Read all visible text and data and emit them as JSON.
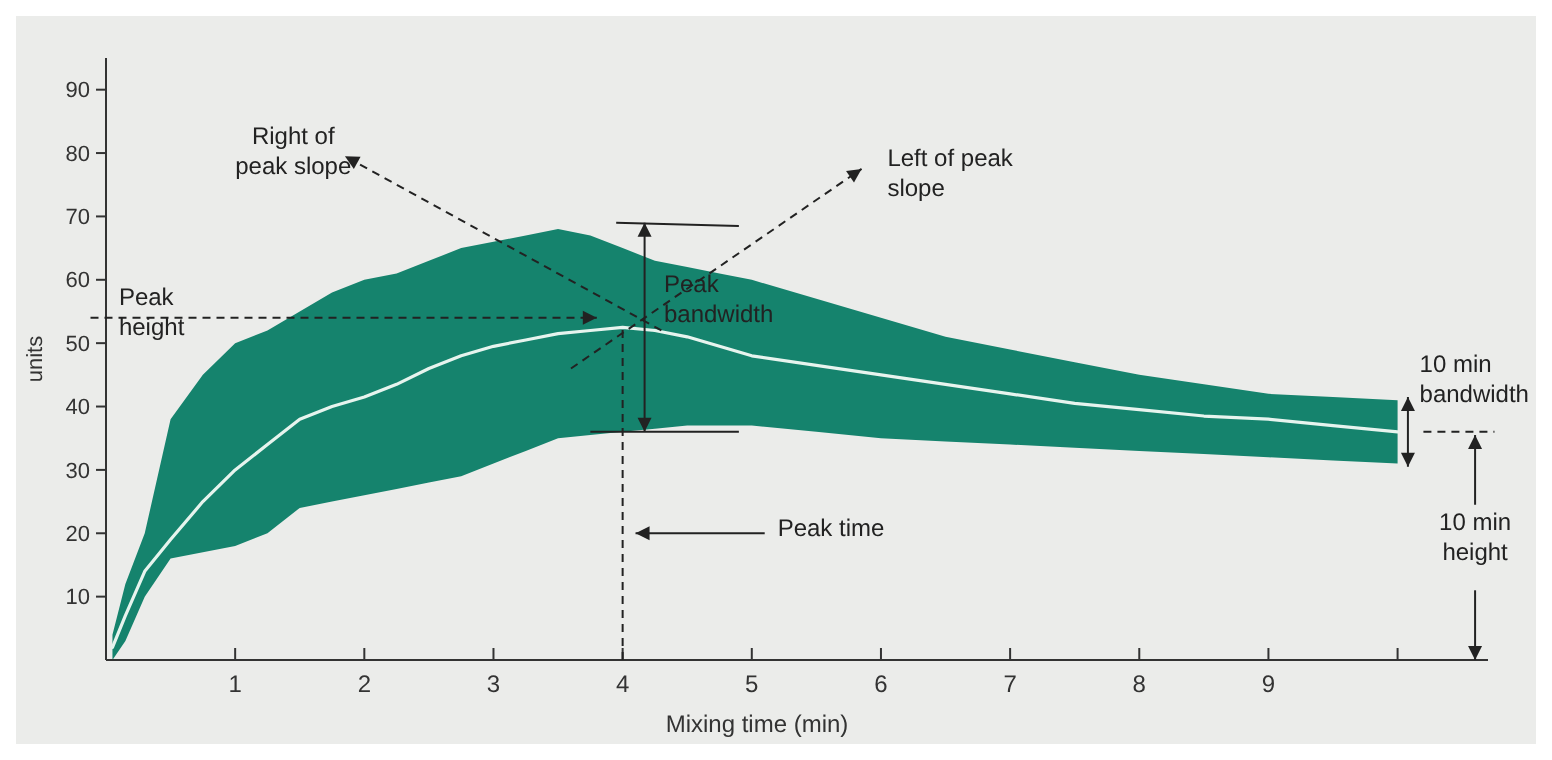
{
  "chart_data": {
    "type": "line",
    "xlabel": "Mixing time (min)",
    "ylabel": "units",
    "xlim": [
      0,
      10.7
    ],
    "ylim": [
      0,
      95
    ],
    "xticks": [
      1,
      2,
      3,
      4,
      5,
      6,
      7,
      8,
      9,
      {
        "value": 10,
        "label": null
      }
    ],
    "yticks": [
      10,
      20,
      30,
      40,
      50,
      60,
      70,
      80,
      90
    ],
    "x": [
      0.05,
      0.15,
      0.3,
      0.5,
      0.75,
      1,
      1.25,
      1.5,
      1.75,
      2,
      2.25,
      2.5,
      2.75,
      3,
      3.25,
      3.5,
      3.75,
      4,
      4.25,
      4.5,
      4.75,
      5,
      5.5,
      6,
      6.5,
      7,
      7.5,
      8,
      8.5,
      9,
      9.5,
      10
    ],
    "series": [
      {
        "color": "#e6f4ee",
        "values": [
          2,
          7,
          14,
          19,
          25,
          30,
          34,
          38,
          40,
          41.5,
          43.5,
          46,
          48,
          49.5,
          50.5,
          51.5,
          52,
          52.5,
          52,
          51,
          49.5,
          48,
          46.5,
          45,
          43.5,
          42,
          40.5,
          39.5,
          38.5,
          38,
          37,
          36
        ],
        "lower": [
          0,
          3,
          10,
          16,
          17,
          18,
          20,
          24,
          25,
          26,
          27,
          28,
          29,
          31,
          33,
          35,
          35.5,
          36,
          36.5,
          37,
          37,
          37,
          36,
          35,
          34.5,
          34,
          33.5,
          33,
          32.5,
          32,
          31.5,
          31
        ],
        "upper": [
          4,
          12,
          20,
          38,
          45,
          50,
          52,
          55,
          58,
          60,
          61,
          63,
          65,
          66,
          67,
          68,
          67,
          65,
          63,
          62,
          61,
          60,
          57,
          54,
          51,
          49,
          47,
          45,
          43.5,
          42,
          41.5,
          41
        ]
      }
    ],
    "annotations": [
      {
        "text": "Right of peak slope",
        "x": 4.3,
        "y": 52
      },
      "Left of peak slope",
      "Peak height",
      "Peak bandwidth",
      "Peak time",
      "10 min bandwidth",
      "10 min height"
    ],
    "grid": false,
    "marker": "none",
    "line_style": "solid"
  }
}
